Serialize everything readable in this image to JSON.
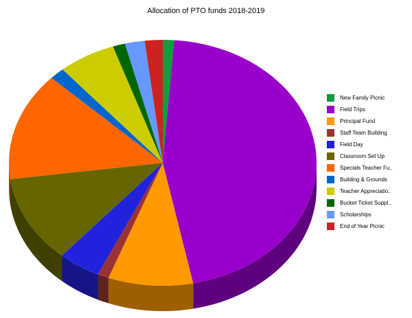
{
  "chart_data": {
    "type": "pie",
    "title": "Allocation of PTO funds 2018-2019",
    "legend_position": "right",
    "slices": [
      {
        "label": "New Family Picnic",
        "value": 1.2,
        "color": "#0e9e3e"
      },
      {
        "label": "Field Trips",
        "value": 46.1,
        "color": "#9900cc"
      },
      {
        "label": "Principal Fund",
        "value": 9.0,
        "color": "#ff9900"
      },
      {
        "label": "Staff Team Building",
        "value": 1.2,
        "color": "#993333"
      },
      {
        "label": "Field Day",
        "value": 4.5,
        "color": "#2222dd"
      },
      {
        "label": "Classroom Set Up",
        "value": 11.6,
        "color": "#666600"
      },
      {
        "label": "Specials Teacher Fu..",
        "value": 14.4,
        "color": "#ff6600"
      },
      {
        "label": "Building & Grounds",
        "value": 1.6,
        "color": "#0066cc"
      },
      {
        "label": "Teacher Appreciatio..",
        "value": 6.1,
        "color": "#cccc00"
      },
      {
        "label": "Bucket Ticket Suppl..",
        "value": 1.3,
        "color": "#006600"
      },
      {
        "label": "Scholarships",
        "value": 2.1,
        "color": "#6699ff"
      },
      {
        "label": "End of Year Picnic",
        "value": 1.9,
        "color": "#cc2222"
      }
    ]
  }
}
